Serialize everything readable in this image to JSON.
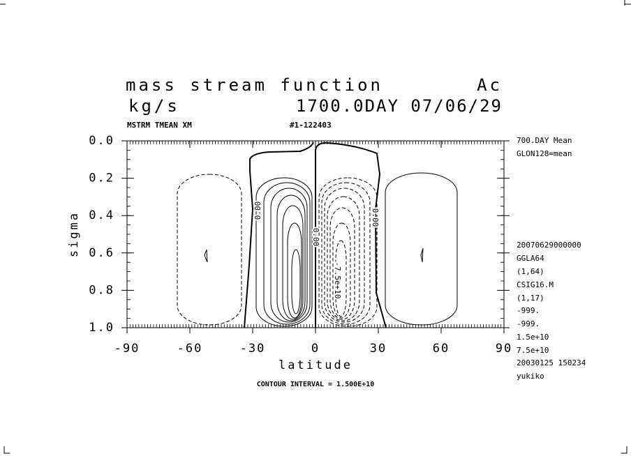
{
  "chart_data": {
    "type": "contour",
    "title": "mass stream function",
    "title_right": "Ac",
    "units": "kg/s",
    "time": "1700.0DAY 07/06/29",
    "variable": "MSTRM TMEAN XM",
    "run": "#1-122403",
    "xlabel": "latitude",
    "ylabel": "sigma",
    "xlim": [
      -90,
      90
    ],
    "xticks": [
      -90,
      -60,
      -30,
      0,
      30,
      60,
      90
    ],
    "ylim": [
      0,
      1
    ],
    "yticks": [
      {
        "value": 0,
        "label": "0.0"
      },
      0.2,
      0.4,
      0.6,
      0.8,
      {
        "value": 1,
        "label": "1.0"
      }
    ],
    "y_inverted": true,
    "contour_labels": [
      "0.00",
      "0.00",
      "0.00",
      "-7.5e+10"
    ],
    "footer": "CONTOUR INTERVAL = 1.500E+10",
    "info": [
      "700.DAY Mean",
      "GLON128=mean",
      "20070629000000",
      "GGLA64",
      "(1,64)",
      "CSIG16.M",
      "(1,17)",
      "-999.",
      "-999.",
      "1.5e+10",
      "7.5e+10",
      "20030125 150234",
      "yukiko"
    ]
  }
}
